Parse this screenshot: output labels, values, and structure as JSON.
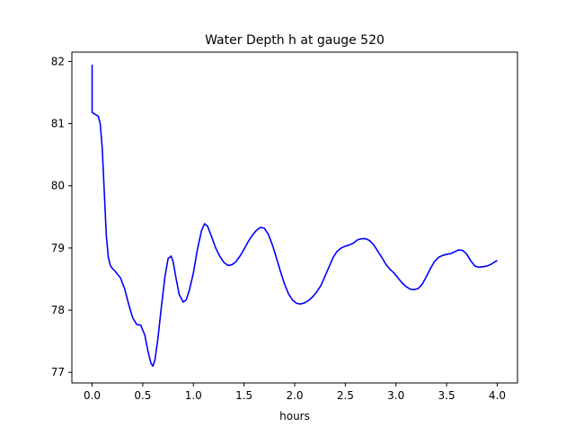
{
  "chart_data": {
    "type": "line",
    "title": "Water Depth h at gauge 520",
    "xlabel": "hours",
    "ylabel": "",
    "xlim": [
      -0.2,
      4.2
    ],
    "ylim": [
      76.83,
      82.15
    ],
    "x_ticks": [
      0.0,
      0.5,
      1.0,
      1.5,
      2.0,
      2.5,
      3.0,
      3.5,
      4.0
    ],
    "x_tick_labels": [
      "0.0",
      "0.5",
      "1.0",
      "1.5",
      "2.0",
      "2.5",
      "3.0",
      "3.5",
      "4.0"
    ],
    "y_ticks": [
      77,
      78,
      79,
      80,
      81,
      82
    ],
    "y_tick_labels": [
      "77",
      "78",
      "79",
      "80",
      "81",
      "82"
    ],
    "grid": false,
    "legend": false,
    "series": [
      {
        "color": "#0000ff",
        "x": [
          0.0,
          0.0,
          0.0,
          0.03,
          0.06,
          0.08,
          0.1,
          0.12,
          0.14,
          0.16,
          0.18,
          0.2,
          0.22,
          0.25,
          0.28,
          0.32,
          0.36,
          0.4,
          0.44,
          0.48,
          0.52,
          0.55,
          0.58,
          0.6,
          0.62,
          0.65,
          0.68,
          0.72,
          0.75,
          0.78,
          0.8,
          0.83,
          0.86,
          0.9,
          0.93,
          0.96,
          1.0,
          1.04,
          1.08,
          1.11,
          1.14,
          1.18,
          1.22,
          1.26,
          1.3,
          1.34,
          1.38,
          1.42,
          1.46,
          1.5,
          1.54,
          1.58,
          1.62,
          1.66,
          1.7,
          1.74,
          1.78,
          1.82,
          1.86,
          1.9,
          1.94,
          1.98,
          2.02,
          2.06,
          2.1,
          2.14,
          2.18,
          2.22,
          2.26,
          2.3,
          2.34,
          2.38,
          2.42,
          2.46,
          2.5,
          2.54,
          2.58,
          2.62,
          2.66,
          2.7,
          2.74,
          2.78,
          2.82,
          2.86,
          2.9,
          2.94,
          2.98,
          3.02,
          3.06,
          3.1,
          3.14,
          3.18,
          3.22,
          3.26,
          3.3,
          3.34,
          3.38,
          3.42,
          3.46,
          3.5,
          3.54,
          3.58,
          3.62,
          3.66,
          3.7,
          3.74,
          3.78,
          3.82,
          3.86,
          3.9,
          3.94,
          3.98,
          4.0
        ],
        "y": [
          81.95,
          81.6,
          81.18,
          81.15,
          81.12,
          81.0,
          80.6,
          79.9,
          79.2,
          78.85,
          78.72,
          78.67,
          78.64,
          78.58,
          78.52,
          78.35,
          78.1,
          77.88,
          77.77,
          77.76,
          77.6,
          77.35,
          77.15,
          77.1,
          77.2,
          77.55,
          78.0,
          78.55,
          78.83,
          78.87,
          78.78,
          78.5,
          78.25,
          78.13,
          78.17,
          78.32,
          78.6,
          78.98,
          79.28,
          79.39,
          79.35,
          79.18,
          79.0,
          78.87,
          78.77,
          78.72,
          78.73,
          78.78,
          78.87,
          78.98,
          79.1,
          79.2,
          79.28,
          79.33,
          79.32,
          79.22,
          79.05,
          78.84,
          78.62,
          78.42,
          78.26,
          78.16,
          78.11,
          78.1,
          78.12,
          78.16,
          78.22,
          78.3,
          78.4,
          78.55,
          78.7,
          78.85,
          78.95,
          79.0,
          79.03,
          79.05,
          79.08,
          79.13,
          79.15,
          79.15,
          79.12,
          79.05,
          78.95,
          78.85,
          78.74,
          78.66,
          78.6,
          78.52,
          78.44,
          78.38,
          78.34,
          78.33,
          78.35,
          78.42,
          78.54,
          78.67,
          78.78,
          78.85,
          78.88,
          78.9,
          78.91,
          78.94,
          78.97,
          78.96,
          78.9,
          78.79,
          78.71,
          78.69,
          78.7,
          78.71,
          78.74,
          78.78,
          78.8
        ]
      }
    ]
  }
}
